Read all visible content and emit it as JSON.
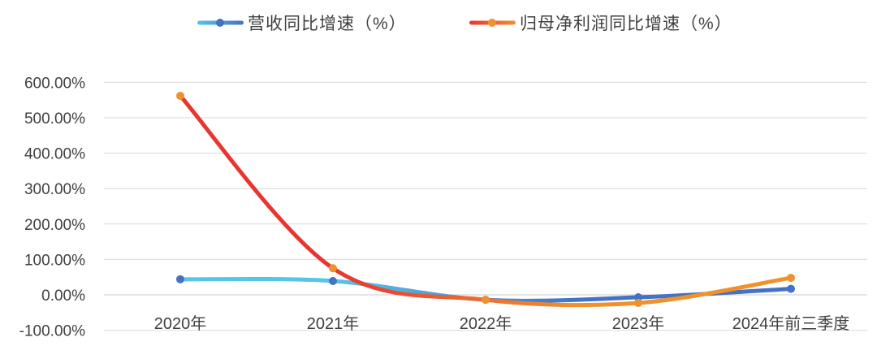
{
  "chart_data": {
    "type": "line",
    "categories": [
      "2020年",
      "2021年",
      "2022年",
      "2023年",
      "2024年前三季度"
    ],
    "series": [
      {
        "name": "营收同比增速（%）",
        "values": [
          44,
          39,
          -14,
          -7,
          17
        ],
        "color_start": "#57C4EA",
        "color_end": "#4472C4",
        "marker_color": "#4472C4"
      },
      {
        "name": "归母净利润同比增速（%）",
        "values": [
          562,
          75,
          -14,
          -23,
          48
        ],
        "color_start": "#E8352F",
        "color_end": "#F0912E",
        "marker_color": "#F0912E"
      }
    ],
    "yticks": [
      600,
      500,
      400,
      300,
      200,
      100,
      0,
      -100
    ],
    "ytick_labels": [
      "600.00%",
      "500.00%",
      "400.00%",
      "300.00%",
      "200.00%",
      "100.00%",
      "0.00%",
      "-100.00%"
    ],
    "ylim": [
      -100,
      600
    ],
    "grid": true,
    "smooth": true,
    "legend_position": "top",
    "grid_color": "#D9D9D9",
    "text_color": "#404040"
  }
}
